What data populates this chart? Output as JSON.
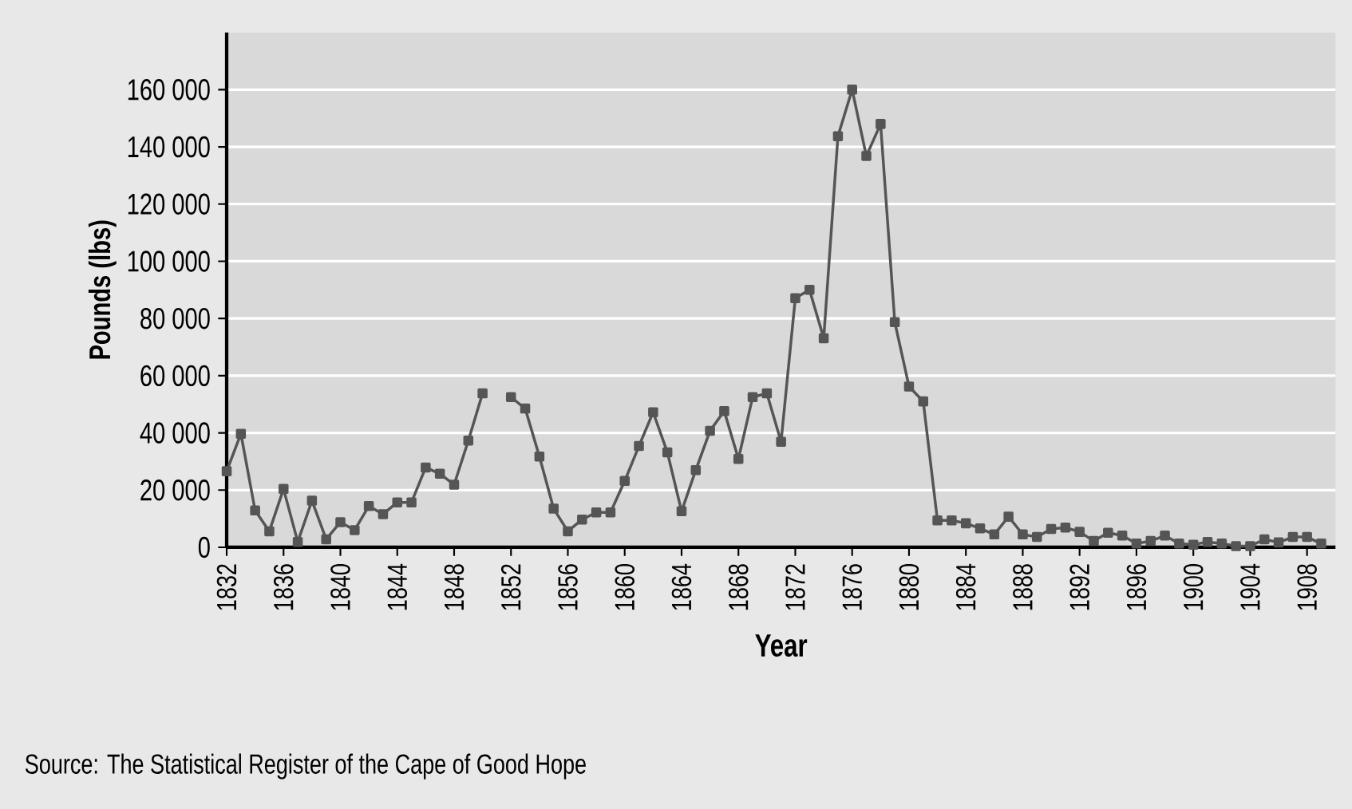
{
  "chart_data": {
    "type": "line",
    "xlabel": "Year",
    "ylabel": "Pounds (lbs)",
    "annotations": [
      "Source: The Statistical Register of the Cape of Good Hope"
    ],
    "x": [
      1832,
      1833,
      1834,
      1835,
      1836,
      1837,
      1838,
      1839,
      1840,
      1841,
      1842,
      1843,
      1844,
      1845,
      1846,
      1847,
      1848,
      1849,
      1850,
      1851,
      1852,
      1853,
      1854,
      1855,
      1856,
      1857,
      1858,
      1859,
      1860,
      1861,
      1862,
      1863,
      1864,
      1865,
      1866,
      1867,
      1868,
      1869,
      1870,
      1871,
      1872,
      1873,
      1874,
      1875,
      1876,
      1877,
      1878,
      1879,
      1880,
      1881,
      1882,
      1883,
      1884,
      1885,
      1886,
      1887,
      1888,
      1889,
      1890,
      1891,
      1892,
      1893,
      1894,
      1895,
      1896,
      1897,
      1898,
      1899,
      1900,
      1901,
      1902,
      1903,
      1904,
      1905,
      1906,
      1907,
      1908,
      1909
    ],
    "series": [
      {
        "color": "#555555",
        "values": [
          26600,
          39700,
          12900,
          5600,
          20400,
          1900,
          16300,
          2800,
          8800,
          6000,
          14400,
          11600,
          15700,
          15700,
          27900,
          25700,
          21900,
          37300,
          53800,
          null,
          52500,
          48500,
          31700,
          13500,
          5600,
          9700,
          12200,
          12200,
          23200,
          35400,
          47200,
          33200,
          12600,
          27000,
          40700,
          47600,
          30900,
          52500,
          53800,
          36900,
          87100,
          90000,
          73100,
          143700,
          160000,
          136800,
          148000,
          78700,
          56200,
          51000,
          9400,
          9400,
          8400,
          6600,
          4500,
          10700,
          4500,
          3600,
          6400,
          6900,
          5400,
          2200,
          5100,
          4100,
          1300,
          2200,
          4100,
          1300,
          900,
          1900,
          1300,
          400,
          400,
          2800,
          1700,
          3600,
          3600,
          1300
        ]
      }
    ],
    "xlim": [
      1832,
      1910
    ],
    "ylim": [
      0,
      180000
    ],
    "xticks": [
      1832,
      1836,
      1840,
      1844,
      1848,
      1852,
      1856,
      1860,
      1864,
      1868,
      1872,
      1876,
      1880,
      1884,
      1888,
      1892,
      1896,
      1900,
      1904,
      1908
    ],
    "yticks": [
      {
        "value": 0,
        "label": "0"
      },
      {
        "value": 20000,
        "label": "20 000"
      },
      {
        "value": 40000,
        "label": "40 000"
      },
      {
        "value": 60000,
        "label": "60 000"
      },
      {
        "value": 80000,
        "label": "80 000"
      },
      {
        "value": 100000,
        "label": "100 000"
      },
      {
        "value": 120000,
        "label": "120 000"
      },
      {
        "value": 140000,
        "label": "140 000"
      },
      {
        "value": 160000,
        "label": "160 000"
      }
    ],
    "grid": "y",
    "marker": "square",
    "line_style": "solid"
  }
}
